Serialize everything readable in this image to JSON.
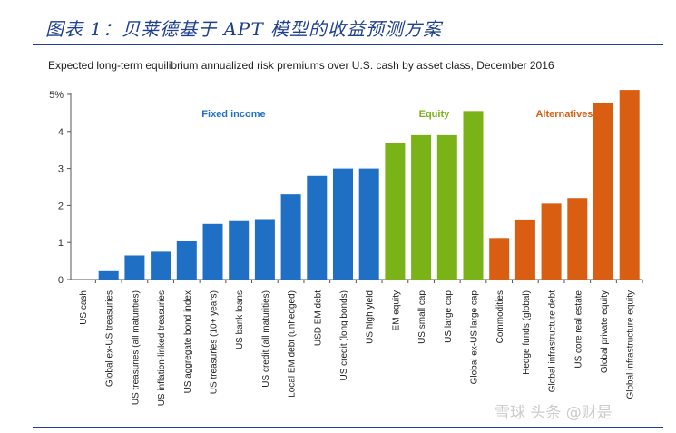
{
  "figure_title": "图表 1：贝莱德基于 APT 模型的收益预测方案",
  "watermark": "雪球 头条 @财是",
  "colors": {
    "title_blue": "#1f3f8f",
    "fixed_income": "#1f6fc5",
    "equity": "#7ab317",
    "alternatives": "#d95e11",
    "axis": "#555555"
  },
  "chart_data": {
    "type": "bar",
    "title": "Expected long-term equilibrium annualized risk premiums over U.S. cash by asset class, December 2016",
    "xlabel": "",
    "ylabel": "",
    "ylim": [
      0,
      5
    ],
    "y_ticks": [
      "0",
      "1",
      "2",
      "3",
      "4",
      "5%"
    ],
    "grid": false,
    "groups": [
      {
        "name": "Fixed income",
        "color": "#1f6fc5",
        "start": 0,
        "end": 11
      },
      {
        "name": "Equity",
        "color": "#7ab317",
        "start": 12,
        "end": 15
      },
      {
        "name": "Alternatives",
        "color": "#d95e11",
        "start": 16,
        "end": 21
      }
    ],
    "categories": [
      "US cash",
      "Global ex-US treasuries",
      "US treasuries (all maturities)",
      "US inflation-linked treasuries",
      "US aggregate bond index",
      "US treasuries (10+ years)",
      "US bank loans",
      "US credit (all maturities)",
      "Local EM debt (unhedged)",
      "USD EM debt",
      "US credit (long bonds)",
      "US high yield",
      "EM equity",
      "US small cap",
      "US large cap",
      "Global ex-US large cap",
      "Commodities",
      "Hedge funds (global)",
      "Global infrastructure debt",
      "US core real estate",
      "Global private equity",
      "Global infrastructure equity"
    ],
    "values": [
      0,
      0.25,
      0.65,
      0.75,
      1.05,
      1.5,
      1.6,
      1.63,
      2.3,
      2.8,
      3.0,
      3.0,
      3.7,
      3.9,
      3.9,
      4.55,
      1.12,
      1.62,
      2.05,
      2.2,
      4.78,
      5.12
    ]
  }
}
